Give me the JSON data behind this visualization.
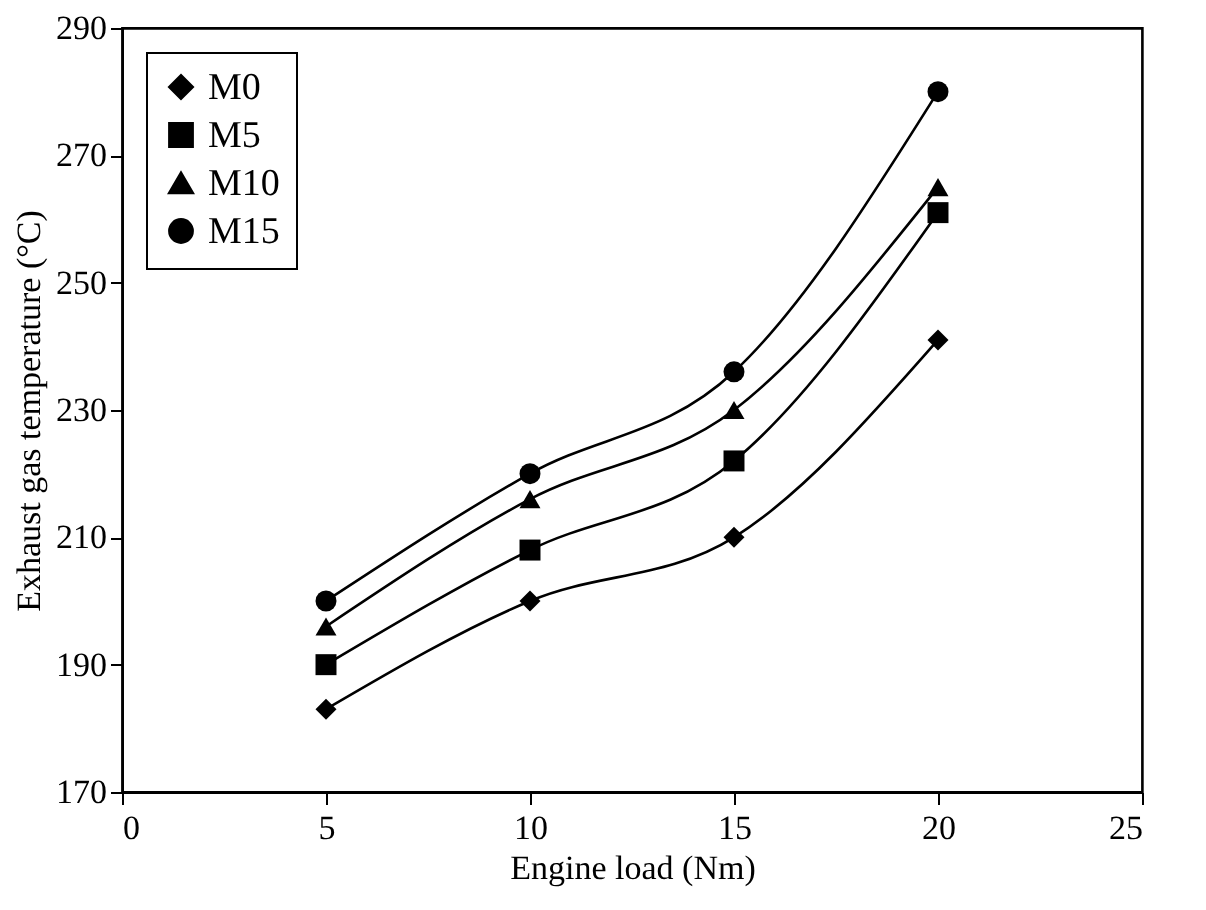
{
  "chart_data": {
    "type": "line",
    "xlabel": "Engine load (Nm)",
    "ylabel": "Exhaust gas temperature (°C)",
    "x": [
      5,
      10,
      15,
      20
    ],
    "xlim": [
      0,
      25
    ],
    "xticks": [
      0,
      5,
      10,
      15,
      20,
      25
    ],
    "ylim": [
      170,
      290
    ],
    "yticks": [
      170,
      190,
      210,
      230,
      250,
      270,
      290
    ],
    "grid": false,
    "legend": "top left",
    "line_style": "solid",
    "series": [
      {
        "name": "M0",
        "color": "#000000",
        "marker": "diamond",
        "values": [
          183,
          200,
          210,
          241
        ]
      },
      {
        "name": "M5",
        "color": "#000000",
        "marker": "square",
        "values": [
          190,
          208,
          222,
          261
        ]
      },
      {
        "name": "M10",
        "color": "#000000",
        "marker": "triangle",
        "values": [
          196,
          216,
          230,
          265
        ]
      },
      {
        "name": "M15",
        "color": "#000000",
        "marker": "circle",
        "values": [
          200,
          220,
          236,
          280
        ]
      }
    ]
  }
}
